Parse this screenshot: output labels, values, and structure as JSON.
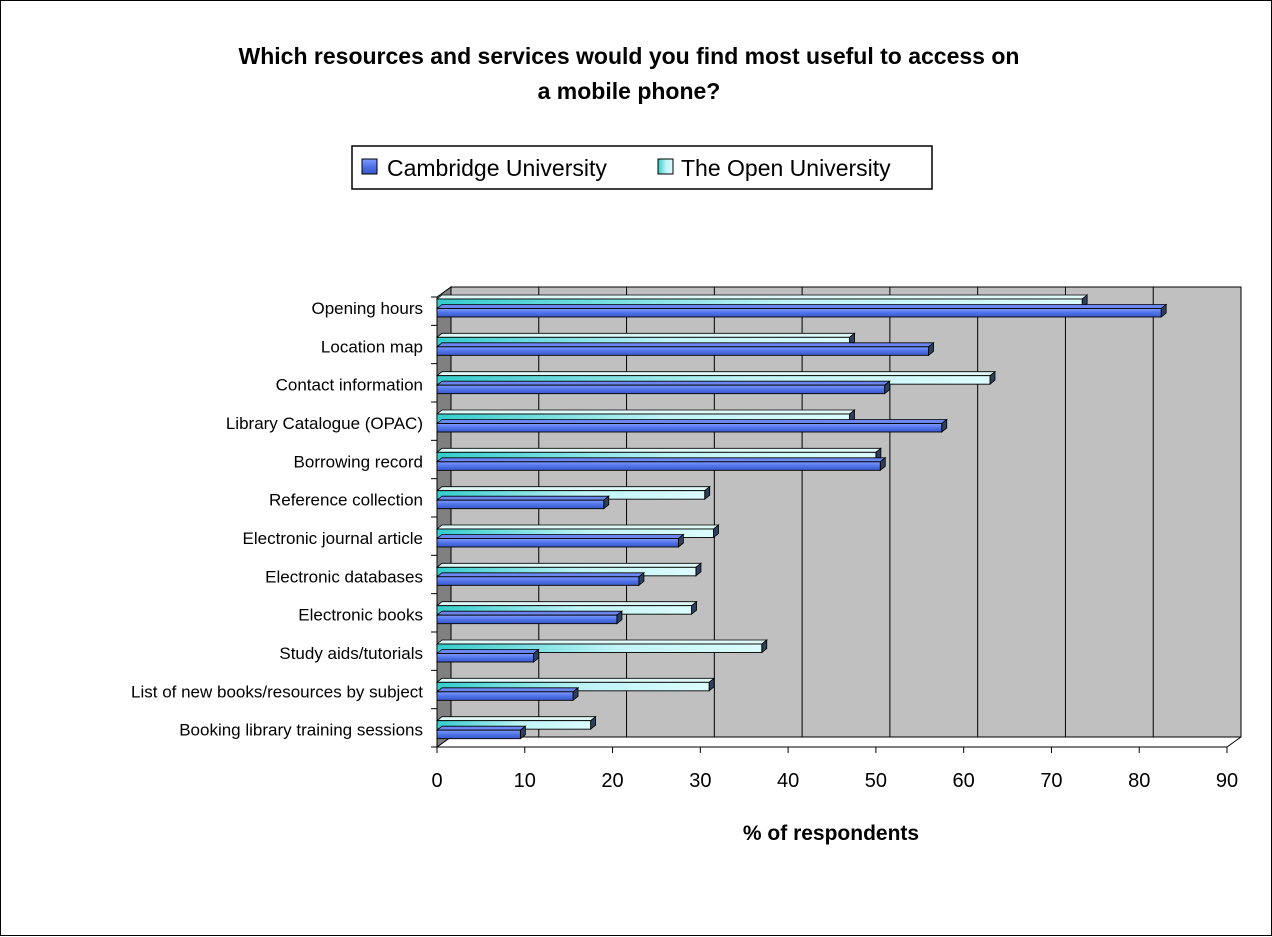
{
  "chart_data": {
    "type": "bar",
    "orientation": "horizontal",
    "title_line1": "Which resources and services would you find most useful to access on",
    "title_line2": "a mobile phone?",
    "xlabel": "% of respondents",
    "ylabel": "",
    "xlim": [
      0,
      90
    ],
    "xticks": [
      0,
      10,
      20,
      30,
      40,
      50,
      60,
      70,
      80,
      90
    ],
    "grid": true,
    "legend_position": "top",
    "categories": [
      "Opening hours",
      "Location map",
      "Contact information",
      "Library Catalogue (OPAC)",
      "Borrowing record",
      "Reference collection",
      "Electronic journal article",
      "Electronic databases",
      "Electronic books",
      "Study aids/tutorials",
      "List of new books/resources by subject",
      "Booking library training sessions"
    ],
    "series": [
      {
        "name": "Cambridge University",
        "color": "#4f73e8",
        "values": [
          82.5,
          56,
          51,
          57.5,
          50.5,
          19,
          27.5,
          23,
          20.5,
          11,
          15.5,
          9.5
        ]
      },
      {
        "name": "The Open University",
        "color": "#bff4f6",
        "values": [
          73.5,
          47,
          63,
          47,
          50,
          30.5,
          31.5,
          29.5,
          29,
          37,
          31,
          17.5
        ]
      }
    ],
    "plot_background": "#c0c0c0",
    "wall_color": "#808080"
  }
}
